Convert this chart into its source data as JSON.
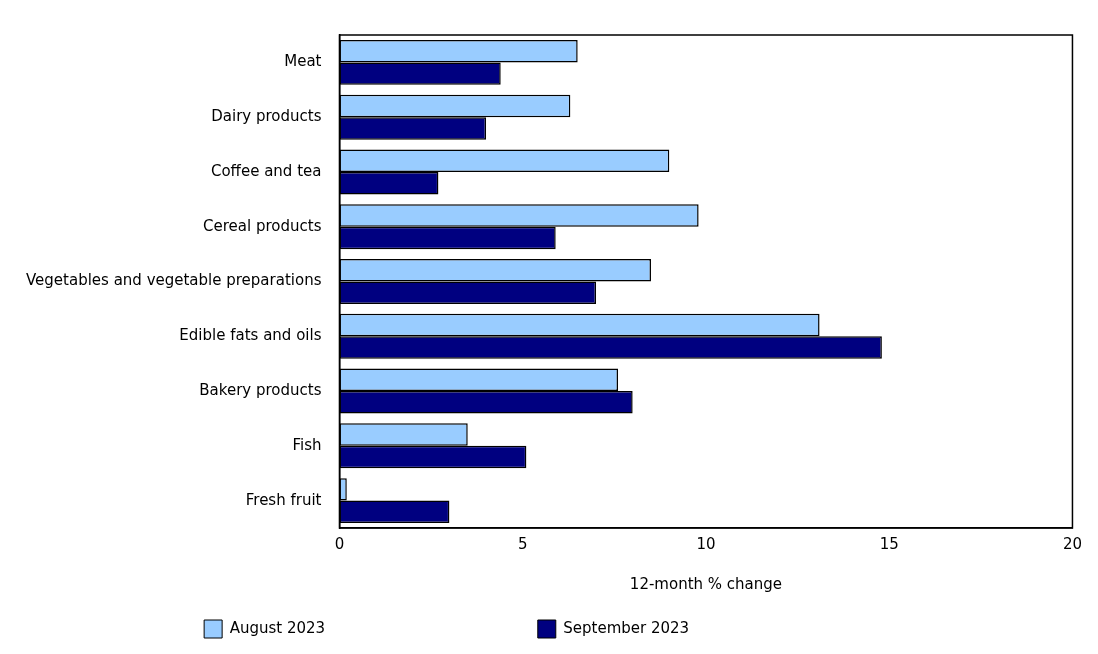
{
  "chart_data": {
    "type": "bar",
    "orientation": "horizontal",
    "xlabel": "12-month % change",
    "categories": [
      "Meat",
      "Dairy products",
      "Coffee and tea",
      "Cereal products",
      "Vegetables and vegetable preparations",
      "Edible fats and oils",
      "Bakery products",
      "Fish",
      "Fresh fruit"
    ],
    "series": [
      {
        "name": "August 2023",
        "color": "#99ccff",
        "values": [
          6.5,
          6.3,
          9.0,
          9.8,
          8.5,
          13.1,
          7.6,
          3.5,
          0.2
        ]
      },
      {
        "name": "September 2023",
        "color": "#000080",
        "values": [
          4.4,
          4.0,
          2.7,
          5.9,
          7.0,
          14.8,
          8.0,
          5.1,
          3.0
        ]
      }
    ],
    "xlim": [
      0,
      20
    ],
    "xticks": [
      0,
      5,
      10,
      15,
      20
    ],
    "grid": false,
    "legend": "bottom"
  }
}
